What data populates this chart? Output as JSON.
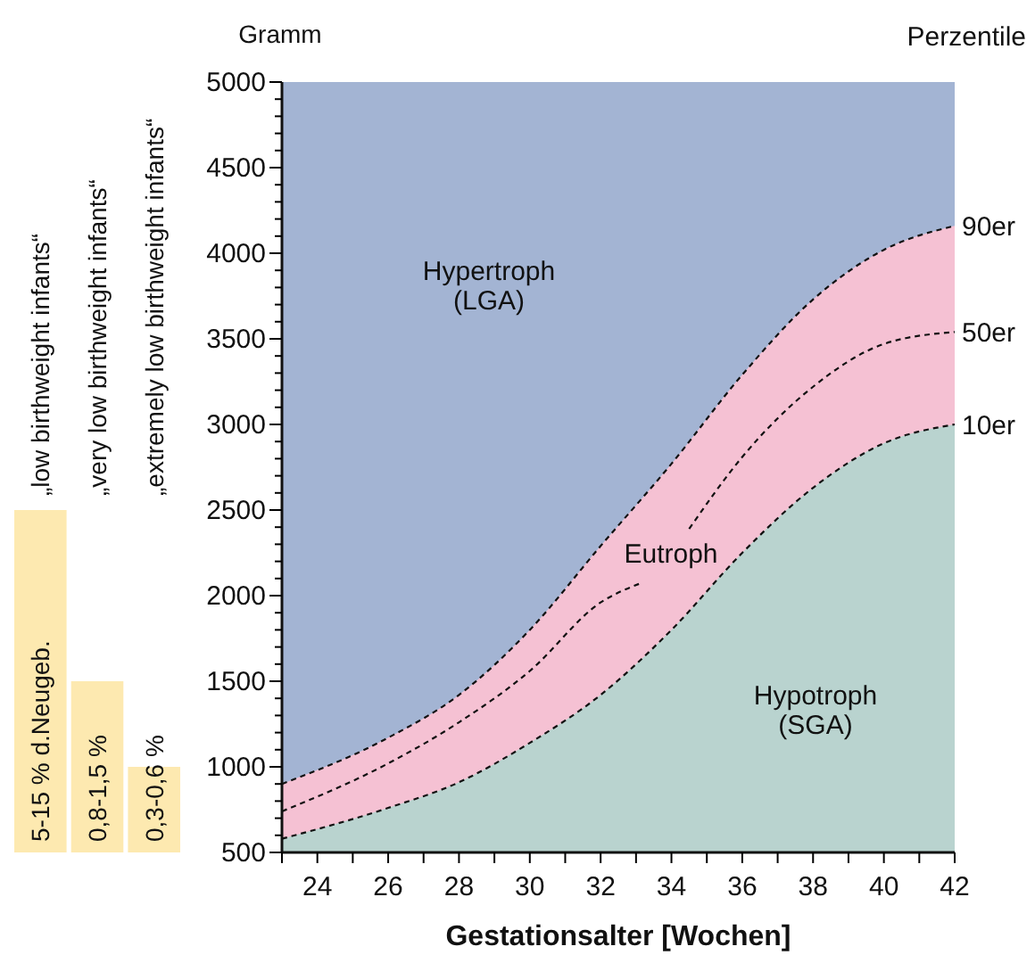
{
  "chart_data": [
    {
      "type": "bar",
      "categories": [
        "„low birthweight infants“",
        "„very low birthweight infants“",
        "„extremely low birthweight infants“"
      ],
      "base": [
        500,
        500,
        500
      ],
      "values": [
        2000,
        1000,
        500
      ],
      "color": "#fde9b0",
      "ylim": [
        500,
        5000
      ],
      "tick_labels": false,
      "annotations": [
        "5-15 % d.Neugeb.",
        "0,8-1,5 %",
        "0,3-0,6 %"
      ]
    },
    {
      "type": "area",
      "ylabel": "Gramm",
      "xlabel": "Gestationsalter [Wochen]",
      "xlim": [
        23,
        42
      ],
      "xticks": [
        {
          "value": 23,
          "label": null
        },
        24,
        {
          "value": 25,
          "label": null
        },
        26,
        {
          "value": 27,
          "label": null
        },
        28,
        {
          "value": 29,
          "label": null
        },
        30,
        {
          "value": 31,
          "label": null
        },
        32,
        {
          "value": 33,
          "label": null
        },
        34,
        {
          "value": 35,
          "label": null
        },
        36,
        {
          "value": 37,
          "label": null
        },
        38,
        {
          "value": 39,
          "label": null
        },
        40,
        {
          "value": 41,
          "label": null
        },
        42
      ],
      "ylim": [
        500,
        5000
      ],
      "yticks": [
        500,
        {
          "value": 600,
          "label": null
        },
        {
          "value": 700,
          "label": null
        },
        {
          "value": 800,
          "label": null
        },
        {
          "value": 900,
          "label": null
        },
        1000,
        {
          "value": 1100,
          "label": null
        },
        {
          "value": 1200,
          "label": null
        },
        {
          "value": 1300,
          "label": null
        },
        {
          "value": 1400,
          "label": null
        },
        1500,
        {
          "value": 1600,
          "label": null
        },
        {
          "value": 1700,
          "label": null
        },
        {
          "value": 1800,
          "label": null
        },
        {
          "value": 1900,
          "label": null
        },
        2000,
        {
          "value": 2100,
          "label": null
        },
        {
          "value": 2200,
          "label": null
        },
        {
          "value": 2300,
          "label": null
        },
        {
          "value": 2400,
          "label": null
        },
        2500,
        {
          "value": 2600,
          "label": null
        },
        {
          "value": 2700,
          "label": null
        },
        {
          "value": 2800,
          "label": null
        },
        {
          "value": 2900,
          "label": null
        },
        3000,
        {
          "value": 3100,
          "label": null
        },
        {
          "value": 3200,
          "label": null
        },
        {
          "value": 3300,
          "label": null
        },
        {
          "value": 3400,
          "label": null
        },
        3500,
        {
          "value": 3600,
          "label": null
        },
        {
          "value": 3700,
          "label": null
        },
        {
          "value": 3800,
          "label": null
        },
        {
          "value": 3900,
          "label": null
        },
        4000,
        {
          "value": 4100,
          "label": null
        },
        {
          "value": 4200,
          "label": null
        },
        {
          "value": 4300,
          "label": null
        },
        {
          "value": 4400,
          "label": null
        },
        4500,
        {
          "value": 4600,
          "label": null
        },
        {
          "value": 4700,
          "label": null
        },
        {
          "value": 4800,
          "label": null
        },
        {
          "value": 4900,
          "label": null
        },
        5000
      ],
      "x": [
        23,
        26,
        28,
        30,
        32,
        34,
        36,
        38,
        40,
        42
      ],
      "line_style": "dashed",
      "marker": "none",
      "grid": false,
      "bands": [
        {
          "axis": "y",
          "from": 500,
          "to": 5000,
          "color": "#a3b4d3"
        }
      ],
      "series": [
        {
          "name": "90er",
          "type": "area",
          "color": "#f5c1d3",
          "values": [
            900,
            1170,
            1420,
            1800,
            2290,
            2770,
            3290,
            3730,
            4020,
            4160
          ]
        },
        {
          "name": "50er",
          "type": "line",
          "color": "#111111",
          "x": [
            23,
            26,
            28,
            30,
            32,
            33.1,
            33.8,
            34.5,
            36,
            38,
            40,
            42
          ],
          "values": [
            740,
            1020,
            1260,
            1560,
            1960,
            2070,
            null,
            2390,
            2810,
            3220,
            3470,
            3540
          ]
        },
        {
          "name": "10er",
          "type": "area",
          "color": "#b9d3cf",
          "values": [
            580,
            760,
            910,
            1140,
            1420,
            1800,
            2250,
            2630,
            2890,
            3000
          ]
        }
      ],
      "annotations": [
        "Hypertroph\n(LGA)",
        "Eutroph",
        "Hypotroph\n(SGA)",
        "Perzentile"
      ]
    }
  ]
}
